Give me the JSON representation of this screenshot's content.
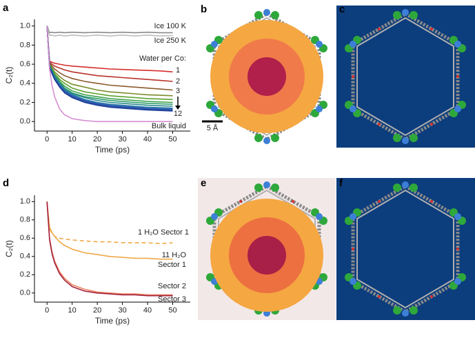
{
  "chart_data": [
    {
      "type": "line",
      "panel": "a",
      "xlabel": "Time (ps)",
      "ylabel": "C₂(t)",
      "annotation": "Water per Co:",
      "xlim": [
        -5,
        57
      ],
      "ylim": [
        -0.1,
        1.07
      ],
      "xticks": [
        0,
        10,
        20,
        30,
        40,
        50
      ],
      "yticks": [
        {
          "value": 0,
          "label": "0.0"
        },
        0.2,
        0.4,
        0.6,
        0.8,
        {
          "value": 1,
          "label": "1.0"
        }
      ],
      "x": [
        0,
        1,
        2,
        3,
        5,
        7,
        10,
        15,
        20,
        25,
        30,
        35,
        40,
        45,
        50
      ],
      "series": [
        {
          "name": "Ice 100 K",
          "color": "#8a8a8a",
          "values": [
            1,
            0.93,
            0.935,
            0.93,
            0.935,
            0.93,
            0.935,
            0.93,
            0.935,
            0.93,
            0.935,
            0.93,
            0.935,
            0.93,
            0.93
          ]
        },
        {
          "name": "Ice 250 K",
          "color": "#bdbdbd",
          "values": [
            1,
            0.9,
            0.905,
            0.895,
            0.905,
            0.895,
            0.905,
            0.895,
            0.905,
            0.895,
            0.905,
            0.895,
            0.905,
            0.895,
            0.9
          ]
        },
        {
          "name": "1",
          "color": "#d62d2d",
          "values": [
            1,
            0.63,
            0.62,
            0.61,
            0.6,
            0.59,
            0.58,
            0.57,
            0.56,
            0.55,
            0.545,
            0.54,
            0.535,
            0.53,
            0.52
          ]
        },
        {
          "name": "2",
          "color": "#b8322a",
          "values": [
            1,
            0.62,
            0.6,
            0.58,
            0.56,
            0.54,
            0.52,
            0.5,
            0.48,
            0.47,
            0.46,
            0.45,
            0.44,
            0.43,
            0.42
          ]
        },
        {
          "name": "3",
          "color": "#8b5a2b",
          "values": [
            1,
            0.61,
            0.58,
            0.55,
            0.51,
            0.48,
            0.45,
            0.42,
            0.4,
            0.38,
            0.37,
            0.36,
            0.35,
            0.34,
            0.33
          ]
        },
        {
          "color": "#7a8c2a",
          "values": [
            1,
            0.6,
            0.56,
            0.52,
            0.47,
            0.43,
            0.39,
            0.36,
            0.33,
            0.31,
            0.3,
            0.29,
            0.28,
            0.275,
            0.27
          ]
        },
        {
          "color": "#5aa02c",
          "values": [
            1,
            0.6,
            0.55,
            0.5,
            0.44,
            0.4,
            0.35,
            0.31,
            0.29,
            0.27,
            0.26,
            0.25,
            0.24,
            0.235,
            0.23
          ]
        },
        {
          "color": "#3aa04a",
          "values": [
            1,
            0.59,
            0.54,
            0.49,
            0.42,
            0.37,
            0.32,
            0.28,
            0.26,
            0.24,
            0.23,
            0.22,
            0.21,
            0.205,
            0.2
          ]
        },
        {
          "color": "#2a9a6a",
          "values": [
            1,
            0.59,
            0.53,
            0.48,
            0.41,
            0.35,
            0.3,
            0.26,
            0.24,
            0.22,
            0.21,
            0.2,
            0.19,
            0.185,
            0.18
          ]
        },
        {
          "color": "#2a8a8a",
          "values": [
            1,
            0.58,
            0.52,
            0.47,
            0.4,
            0.34,
            0.29,
            0.25,
            0.22,
            0.2,
            0.19,
            0.18,
            0.17,
            0.165,
            0.16
          ]
        },
        {
          "color": "#2a7aa8",
          "values": [
            1,
            0.58,
            0.52,
            0.46,
            0.39,
            0.33,
            0.28,
            0.23,
            0.2,
            0.18,
            0.17,
            0.16,
            0.15,
            0.145,
            0.14
          ]
        },
        {
          "color": "#2f64b0",
          "values": [
            1,
            0.58,
            0.51,
            0.45,
            0.38,
            0.32,
            0.27,
            0.22,
            0.19,
            0.17,
            0.16,
            0.15,
            0.14,
            0.135,
            0.13
          ]
        },
        {
          "color": "#2a4fa8",
          "values": [
            1,
            0.57,
            0.51,
            0.45,
            0.37,
            0.31,
            0.26,
            0.21,
            0.18,
            0.16,
            0.15,
            0.14,
            0.13,
            0.125,
            0.12
          ]
        },
        {
          "name": "12",
          "color": "#1f3f9a",
          "values": [
            1,
            0.57,
            0.5,
            0.44,
            0.36,
            0.3,
            0.25,
            0.2,
            0.17,
            0.15,
            0.14,
            0.13,
            0.12,
            0.115,
            0.11
          ]
        },
        {
          "name": "Bulk liquid",
          "color": "#d58fd0",
          "values": [
            1,
            0.55,
            0.38,
            0.26,
            0.13,
            0.07,
            0.03,
            0.01,
            0,
            0,
            0,
            0,
            0,
            0,
            0
          ]
        }
      ]
    },
    {
      "type": "line",
      "panel": "d",
      "xlabel": "Time (ps)",
      "ylabel": "C₂(t)",
      "xlim": [
        -5,
        57
      ],
      "ylim": [
        -0.1,
        1.07
      ],
      "xticks": [
        0,
        10,
        20,
        30,
        40,
        50
      ],
      "yticks": [
        {
          "value": 0,
          "label": "0.0"
        },
        0.2,
        0.4,
        0.6,
        0.8,
        {
          "value": 1,
          "label": "1.0"
        }
      ],
      "x": [
        0,
        1,
        2,
        3,
        5,
        7,
        10,
        15,
        20,
        25,
        30,
        35,
        40,
        45,
        50
      ],
      "series": [
        {
          "name": [
            "1 H₂O Sector 1"
          ],
          "color": "#f0a848",
          "style": "dashed",
          "values": [
            1,
            0.7,
            0.65,
            0.62,
            0.6,
            0.59,
            0.58,
            0.57,
            0.56,
            0.56,
            0.55,
            0.55,
            0.55,
            0.54,
            0.55
          ]
        },
        {
          "name": [
            "11 H₂O",
            "Sector 1"
          ],
          "color": "#f0a848",
          "values": [
            1,
            0.72,
            0.66,
            0.62,
            0.56,
            0.52,
            0.48,
            0.44,
            0.42,
            0.4,
            0.39,
            0.38,
            0.38,
            0.37,
            0.37
          ]
        },
        {
          "name": [
            "Sector 2"
          ],
          "color": "#ec8060",
          "values": [
            1,
            0.6,
            0.45,
            0.35,
            0.23,
            0.16,
            0.09,
            0.04,
            0.01,
            0,
            -0.01,
            -0.01,
            -0.02,
            -0.02,
            -0.02
          ]
        },
        {
          "name": [
            "Sector 3"
          ],
          "color": "#a3243f",
          "values": [
            1,
            0.58,
            0.43,
            0.33,
            0.21,
            0.14,
            0.07,
            0.02,
            0,
            -0.01,
            -0.02,
            -0.02,
            -0.03,
            -0.03,
            -0.03
          ]
        }
      ]
    }
  ],
  "images": [
    {
      "label": "b",
      "scale_bar": "5 Å"
    },
    {
      "label": "c"
    },
    {
      "label": "e"
    },
    {
      "label": "f"
    }
  ]
}
